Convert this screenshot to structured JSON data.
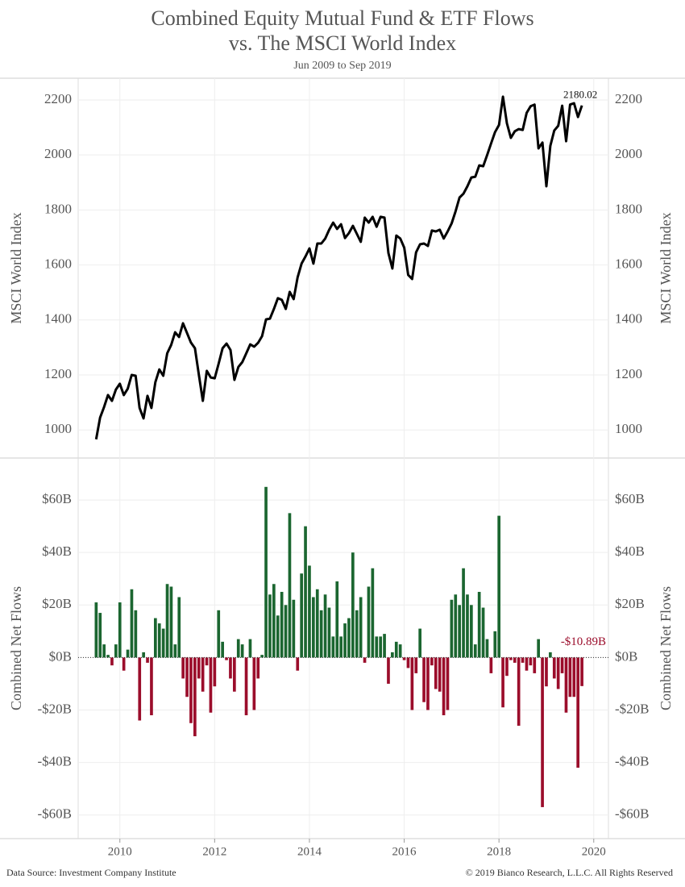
{
  "title": "Combined Equity Mutual Fund & ETF Flows",
  "title_line2": "vs. The MSCI World Index",
  "subtitle": "Jun 2009 to Sep 2019",
  "source": "Data Source: Investment Company Institute",
  "copyright": "© 2019 Bianco Research, L.L.C. All Rights Reserved",
  "chart_data": [
    {
      "type": "line",
      "y_label": "MSCI World Index",
      "grid": true,
      "x": [
        "2009-06",
        "2009-07",
        "2009-08",
        "2009-09",
        "2009-10",
        "2009-11",
        "2009-12",
        "2010-01",
        "2010-02",
        "2010-03",
        "2010-04",
        "2010-05",
        "2010-06",
        "2010-07",
        "2010-08",
        "2010-09",
        "2010-10",
        "2010-11",
        "2010-12",
        "2011-01",
        "2011-02",
        "2011-03",
        "2011-04",
        "2011-05",
        "2011-06",
        "2011-07",
        "2011-08",
        "2011-09",
        "2011-10",
        "2011-11",
        "2011-12",
        "2012-01",
        "2012-02",
        "2012-03",
        "2012-04",
        "2012-05",
        "2012-06",
        "2012-07",
        "2012-08",
        "2012-09",
        "2012-10",
        "2012-11",
        "2012-12",
        "2013-01",
        "2013-02",
        "2013-03",
        "2013-04",
        "2013-05",
        "2013-06",
        "2013-07",
        "2013-08",
        "2013-09",
        "2013-10",
        "2013-11",
        "2013-12",
        "2014-01",
        "2014-02",
        "2014-03",
        "2014-04",
        "2014-05",
        "2014-06",
        "2014-07",
        "2014-08",
        "2014-09",
        "2014-10",
        "2014-11",
        "2014-12",
        "2015-01",
        "2015-02",
        "2015-03",
        "2015-04",
        "2015-05",
        "2015-06",
        "2015-07",
        "2015-08",
        "2015-09",
        "2015-10",
        "2015-11",
        "2015-12",
        "2016-01",
        "2016-02",
        "2016-03",
        "2016-04",
        "2016-05",
        "2016-06",
        "2016-07",
        "2016-08",
        "2016-09",
        "2016-10",
        "2016-11",
        "2016-12",
        "2017-01",
        "2017-02",
        "2017-03",
        "2017-04",
        "2017-05",
        "2017-06",
        "2017-07",
        "2017-08",
        "2017-09",
        "2017-10",
        "2017-11",
        "2017-12",
        "2018-01",
        "2018-02",
        "2018-03",
        "2018-04",
        "2018-05",
        "2018-06",
        "2018-07",
        "2018-08",
        "2018-09",
        "2018-10",
        "2018-11",
        "2018-12",
        "2019-01",
        "2019-02",
        "2019-03",
        "2019-04",
        "2019-05",
        "2019-06",
        "2019-07",
        "2019-08",
        "2019-09"
      ],
      "series": [
        {
          "color": "#000000",
          "values": [
            966,
            1045,
            1083,
            1127,
            1106,
            1147,
            1168,
            1127,
            1150,
            1200,
            1197,
            1080,
            1042,
            1124,
            1080,
            1174,
            1220,
            1197,
            1279,
            1309,
            1355,
            1338,
            1388,
            1353,
            1318,
            1297,
            1200,
            1106,
            1215,
            1191,
            1188,
            1241,
            1297,
            1314,
            1291,
            1182,
            1229,
            1247,
            1279,
            1311,
            1303,
            1317,
            1341,
            1402,
            1405,
            1440,
            1479,
            1473,
            1440,
            1502,
            1476,
            1555,
            1605,
            1631,
            1660,
            1605,
            1678,
            1678,
            1696,
            1728,
            1754,
            1731,
            1748,
            1698,
            1716,
            1742,
            1713,
            1684,
            1772,
            1754,
            1775,
            1739,
            1775,
            1772,
            1643,
            1587,
            1707,
            1696,
            1663,
            1564,
            1549,
            1646,
            1675,
            1678,
            1669,
            1725,
            1722,
            1728,
            1696,
            1722,
            1751,
            1795,
            1845,
            1859,
            1886,
            1918,
            1921,
            1962,
            1959,
            2000,
            2042,
            2083,
            2109,
            2212,
            2115,
            2062,
            2086,
            2094,
            2091,
            2153,
            2177,
            2183,
            2024,
            2045,
            1886,
            2033,
            2089,
            2106,
            2179,
            2050,
            2183,
            2188,
            2138,
            2180.02
          ]
        }
      ],
      "xlim": [
        2009.12,
        2020.31
      ],
      "xticks": [
        2010,
        2012,
        2014,
        2016,
        2018,
        2020
      ],
      "ylim": [
        898,
        2279
      ],
      "yticks": [
        1000,
        1200,
        1400,
        1600,
        1800,
        2000,
        2200
      ]
    },
    {
      "type": "bar",
      "y_label": "Combined Net Flows",
      "grid": true,
      "positive_color": "#1b6630",
      "negative_color": "#9b0d2b",
      "x": [
        "2009-06",
        "2009-07",
        "2009-08",
        "2009-09",
        "2009-10",
        "2009-11",
        "2009-12",
        "2010-01",
        "2010-02",
        "2010-03",
        "2010-04",
        "2010-05",
        "2010-06",
        "2010-07",
        "2010-08",
        "2010-09",
        "2010-10",
        "2010-11",
        "2010-12",
        "2011-01",
        "2011-02",
        "2011-03",
        "2011-04",
        "2011-05",
        "2011-06",
        "2011-07",
        "2011-08",
        "2011-09",
        "2011-10",
        "2011-11",
        "2011-12",
        "2012-01",
        "2012-02",
        "2012-03",
        "2012-04",
        "2012-05",
        "2012-06",
        "2012-07",
        "2012-08",
        "2012-09",
        "2012-10",
        "2012-11",
        "2012-12",
        "2013-01",
        "2013-02",
        "2013-03",
        "2013-04",
        "2013-05",
        "2013-06",
        "2013-07",
        "2013-08",
        "2013-09",
        "2013-10",
        "2013-11",
        "2013-12",
        "2014-01",
        "2014-02",
        "2014-03",
        "2014-04",
        "2014-05",
        "2014-06",
        "2014-07",
        "2014-08",
        "2014-09",
        "2014-10",
        "2014-11",
        "2014-12",
        "2015-01",
        "2015-02",
        "2015-03",
        "2015-04",
        "2015-05",
        "2015-06",
        "2015-07",
        "2015-08",
        "2015-09",
        "2015-10",
        "2015-11",
        "2015-12",
        "2016-01",
        "2016-02",
        "2016-03",
        "2016-04",
        "2016-05",
        "2016-06",
        "2016-07",
        "2016-08",
        "2016-09",
        "2016-10",
        "2016-11",
        "2016-12",
        "2017-01",
        "2017-02",
        "2017-03",
        "2017-04",
        "2017-05",
        "2017-06",
        "2017-07",
        "2017-08",
        "2017-09",
        "2017-10",
        "2017-11",
        "2017-12",
        "2018-01",
        "2018-02",
        "2018-03",
        "2018-04",
        "2018-05",
        "2018-06",
        "2018-07",
        "2018-08",
        "2018-09",
        "2018-10",
        "2018-11",
        "2018-12",
        "2019-01",
        "2019-02",
        "2019-03",
        "2019-04",
        "2019-05",
        "2019-06",
        "2019-07",
        "2019-08",
        "2019-09"
      ],
      "values": [
        21,
        17,
        5,
        1,
        -3,
        5,
        21,
        -5,
        3,
        26,
        18,
        -24,
        2,
        -2,
        -22,
        15,
        13,
        11,
        28,
        27,
        5,
        23,
        -8,
        -15,
        -25,
        -30,
        -8,
        -13,
        -3,
        -21,
        -11,
        18,
        6,
        -1,
        -8,
        -13,
        7,
        5,
        -22,
        7,
        -20,
        -8,
        1,
        65,
        24,
        28,
        16,
        25,
        20,
        55,
        22,
        -5,
        32,
        50,
        35,
        23,
        26,
        18,
        24,
        19,
        8,
        29,
        8,
        13,
        15,
        40,
        18,
        23,
        -2,
        27,
        34,
        8,
        8,
        9,
        -10,
        2,
        6,
        5,
        -1,
        -4,
        -20,
        -6,
        11,
        -17,
        -20,
        -3,
        -12,
        -13,
        -22,
        -20,
        22,
        24,
        20,
        34,
        24,
        20,
        5,
        25,
        19,
        7,
        -6,
        10,
        54,
        -19,
        -7,
        -1,
        -2,
        -26,
        -2,
        -5,
        -3,
        -6,
        7,
        -57,
        -11,
        2,
        -8,
        -12,
        -6,
        -21,
        -15,
        -15,
        -42,
        -10.89
      ],
      "value_labels": [
        null,
        null,
        null,
        null,
        null,
        null,
        null,
        null,
        null,
        null,
        null,
        null,
        null,
        null,
        null,
        null,
        null,
        null,
        null,
        null,
        null,
        null,
        null,
        null,
        null,
        null,
        null,
        null,
        null,
        null,
        null,
        null,
        null,
        null,
        null,
        null,
        null,
        null,
        null,
        null,
        null,
        null,
        null,
        null,
        null,
        null,
        null,
        null,
        null,
        null,
        null,
        null,
        null,
        null,
        null,
        null,
        null,
        null,
        null,
        null,
        null,
        null,
        null,
        null,
        null,
        null,
        null,
        null,
        null,
        null,
        null,
        null,
        null,
        null,
        null,
        null,
        null,
        null,
        null,
        null,
        null,
        null,
        null,
        null,
        null,
        null,
        null,
        null,
        null,
        null,
        null,
        null,
        null,
        null,
        null,
        null,
        null,
        null,
        null,
        null,
        null,
        null,
        null,
        null,
        null,
        null,
        null,
        null,
        null,
        null,
        null,
        null,
        null,
        null,
        null,
        null,
        null,
        null,
        null,
        null,
        null,
        null,
        null,
        "-$10.89B"
      ],
      "xlim": [
        2009.12,
        2020.31
      ],
      "xticks": [
        2010,
        2012,
        2014,
        2016,
        2018,
        2020
      ],
      "ylim": [
        -69,
        76
      ],
      "yticks": [
        {
          "value": -60,
          "label": "-$60B"
        },
        {
          "value": -40,
          "label": "-$40B"
        },
        {
          "value": -20,
          "label": "-$20B"
        },
        {
          "value": 0,
          "label": "$0B"
        },
        {
          "value": 20,
          "label": "$20B"
        },
        {
          "value": 40,
          "label": "$40B"
        },
        {
          "value": 60,
          "label": "$60B"
        }
      ]
    }
  ]
}
